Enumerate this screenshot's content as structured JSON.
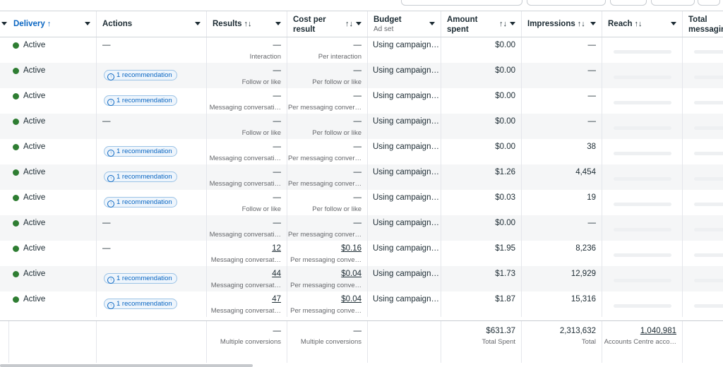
{
  "columns": {
    "delivery": "Delivery",
    "actions": "Actions",
    "results": "Results",
    "cost_per_result": "Cost per result",
    "budget": "Budget",
    "budget_sub": "Ad set",
    "amount_spent": "Amount spent",
    "impressions": "Impressions",
    "reach": "Reach",
    "total_messaging": "Total messaging"
  },
  "sort_glyph": "↑↓",
  "delivery_sort_glyph": "↑",
  "recommendation_label": "1 recommendation",
  "rows": [
    {
      "status": "Active",
      "action": "—",
      "results": "—",
      "results_sub": "Interaction",
      "cpr": "—",
      "cpr_sub": "Per interaction",
      "budget": "Using campaign…",
      "spent": "$0.00",
      "impressions": "—"
    },
    {
      "status": "Active",
      "action": "rec",
      "results": "—",
      "results_sub": "Follow or like",
      "cpr": "—",
      "cpr_sub": "Per follow or like",
      "budget": "Using campaign…",
      "spent": "$0.00",
      "impressions": "—"
    },
    {
      "status": "Active",
      "action": "rec",
      "results": "—",
      "results_sub": "Messaging conversati…",
      "cpr": "—",
      "cpr_sub": "Per messaging conver…",
      "budget": "Using campaign…",
      "spent": "$0.00",
      "impressions": "—"
    },
    {
      "status": "Active",
      "action": "—",
      "results": "—",
      "results_sub": "Follow or like",
      "cpr": "—",
      "cpr_sub": "Per follow or like",
      "budget": "Using campaign…",
      "spent": "$0.00",
      "impressions": "—"
    },
    {
      "status": "Active",
      "action": "rec",
      "results": "—",
      "results_sub": "Messaging conversati…",
      "cpr": "—",
      "cpr_sub": "Per messaging conver…",
      "budget": "Using campaign…",
      "spent": "$0.00",
      "impressions": "38"
    },
    {
      "status": "Active",
      "action": "rec",
      "results": "—",
      "results_sub": "Messaging conversati…",
      "cpr": "—",
      "cpr_sub": "Per messaging conver…",
      "budget": "Using campaign…",
      "spent": "$1.26",
      "impressions": "4,454"
    },
    {
      "status": "Active",
      "action": "rec",
      "results": "—",
      "results_sub": "Follow or like",
      "cpr": "—",
      "cpr_sub": "Per follow or like",
      "budget": "Using campaign…",
      "spent": "$0.03",
      "impressions": "19"
    },
    {
      "status": "Active",
      "action": "—",
      "results": "—",
      "results_sub": "Messaging conversati…",
      "cpr": "—",
      "cpr_sub": "Per messaging conver…",
      "budget": "Using campaign…",
      "spent": "$0.00",
      "impressions": "—"
    },
    {
      "status": "Active",
      "action": "—",
      "results": "12",
      "results_sub": "Messaging conversat…",
      "cpr": "$0.16",
      "cpr_sub": "Per messaging conve…",
      "budget": "Using campaign…",
      "spent": "$1.95",
      "impressions": "8,236"
    },
    {
      "status": "Active",
      "action": "rec",
      "results": "44",
      "results_sub": "Messaging conversat…",
      "cpr": "$0.04",
      "cpr_sub": "Per messaging conve…",
      "budget": "Using campaign…",
      "spent": "$1.73",
      "impressions": "12,929"
    },
    {
      "status": "Active",
      "action": "rec",
      "results": "47",
      "results_sub": "Messaging conversat…",
      "cpr": "$0.04",
      "cpr_sub": "Per messaging conve…",
      "budget": "Using campaign…",
      "spent": "$1.87",
      "impressions": "15,316"
    }
  ],
  "footer": {
    "results": "—",
    "results_sub": "Multiple conversions",
    "cpr": "—",
    "cpr_sub": "Multiple conversions",
    "spent": "$631.37",
    "spent_sub": "Total Spent",
    "impressions": "2,313,632",
    "impressions_sub": "Total",
    "reach": "1,040,981",
    "reach_sub": "Accounts Centre acco…"
  },
  "colors": {
    "active_dot": "#2e7d32",
    "link_blue": "#0a66c2",
    "alt_row": "#f5f6f7"
  }
}
